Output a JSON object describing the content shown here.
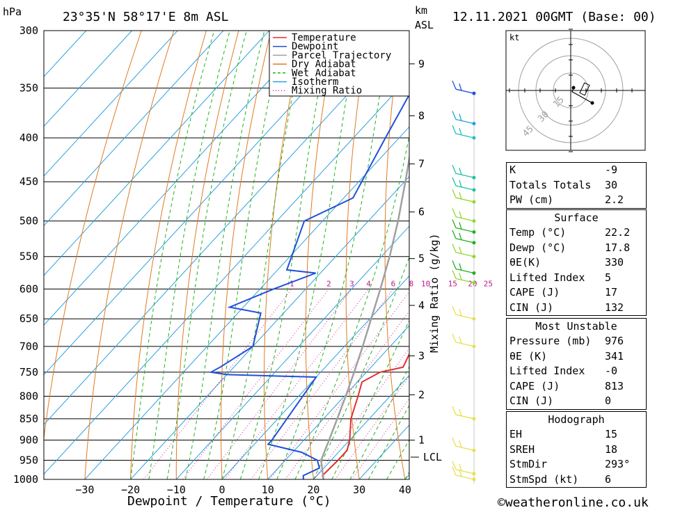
{
  "header": {
    "location": "23°35'N 58°17'E 8m ASL",
    "datetime": "12.11.2021 00GMT (Base: 00)",
    "hpa_label": "hPa",
    "km_label": "km",
    "asl_label": "ASL"
  },
  "axes": {
    "xlabel": "Dewpoint / Temperature (°C)",
    "mixing_label": "Mixing Ratio (g/kg)",
    "lcl_label": "LCL"
  },
  "legend": [
    {
      "label": "Temperature",
      "color": "#e03030",
      "style": "solid"
    },
    {
      "label": "Dewpoint",
      "color": "#2050d8",
      "style": "solid"
    },
    {
      "label": "Parcel Trajectory",
      "color": "#a0a0a0",
      "style": "solid"
    },
    {
      "label": "Dry Adiabat",
      "color": "#e07a20",
      "style": "solid"
    },
    {
      "label": "Wet Adiabat",
      "color": "#20b020",
      "style": "dashed"
    },
    {
      "label": "Isotherm",
      "color": "#2ca0e0",
      "style": "solid"
    },
    {
      "label": "Mixing Ratio",
      "color": "#d0209a",
      "style": "dotted"
    }
  ],
  "chart_data": {
    "type": "line",
    "title": "23°35'N 58°17'E 8m ASL",
    "xlabel": "Dewpoint / Temperature (°C)",
    "ylabel": "hPa",
    "xlim": [
      -40,
      40
    ],
    "ylim": [
      1000,
      300
    ],
    "y_scale": "log",
    "grid": true,
    "legend_position": "top-right",
    "pressure_ticks": [
      300,
      350,
      400,
      450,
      500,
      550,
      600,
      650,
      700,
      750,
      800,
      850,
      900,
      950,
      1000
    ],
    "temp_ticks": [
      -30,
      -20,
      -10,
      0,
      10,
      20,
      30,
      40
    ],
    "km_ticks": [
      {
        "label": "1",
        "p": 900
      },
      {
        "label": "2",
        "p": 797
      },
      {
        "label": "3",
        "p": 718
      },
      {
        "label": "4",
        "p": 627
      },
      {
        "label": "5",
        "p": 553
      },
      {
        "label": "6",
        "p": 488
      },
      {
        "label": "7",
        "p": 429
      },
      {
        "label": "8",
        "p": 377
      },
      {
        "label": "9",
        "p": 328
      }
    ],
    "lcl_pressure": 950,
    "mixing_ratio_labels": [
      1,
      2,
      3,
      4,
      6,
      8,
      10,
      15,
      20,
      25
    ],
    "series": [
      {
        "name": "Temperature",
        "points": [
          [
            1000,
            22.2
          ],
          [
            990,
            21.2
          ],
          [
            950,
            21.5
          ],
          [
            925,
            21.5
          ],
          [
            900,
            20.0
          ],
          [
            850,
            16.0
          ],
          [
            800,
            13.0
          ],
          [
            770,
            11.0
          ],
          [
            750,
            13.0
          ],
          [
            740,
            17.0
          ],
          [
            700,
            15.0
          ],
          [
            650,
            12.5
          ],
          [
            640,
            12.5
          ],
          [
            600,
            11.0
          ],
          [
            580,
            10.5
          ],
          [
            575,
            10.0
          ],
          [
            550,
            6.0
          ],
          [
            500,
            2.0
          ],
          [
            470,
            -1.0
          ],
          [
            450,
            -3.0
          ],
          [
            400,
            -9.0
          ],
          [
            350,
            -18.0
          ],
          [
            330,
            -22.0
          ],
          [
            300,
            -26.0
          ]
        ]
      },
      {
        "name": "Dewpoint",
        "points": [
          [
            1000,
            17.8
          ],
          [
            990,
            17.0
          ],
          [
            970,
            19.0
          ],
          [
            950,
            17.0
          ],
          [
            930,
            12.0
          ],
          [
            910,
            3.0
          ],
          [
            900,
            3.0
          ],
          [
            850,
            2.0
          ],
          [
            760,
            0.0
          ],
          [
            755,
            -20.0
          ],
          [
            750,
            -24.0
          ],
          [
            740,
            -23.0
          ],
          [
            700,
            -20.0
          ],
          [
            640,
            -25.0
          ],
          [
            630,
            -33.0
          ],
          [
            600,
            -27.0
          ],
          [
            575,
            -21.0
          ],
          [
            570,
            -28.0
          ],
          [
            500,
            -34.0
          ],
          [
            470,
            -28.0
          ],
          [
            400,
            -33.0
          ],
          [
            350,
            -37.0
          ],
          [
            330,
            -38.0
          ],
          [
            300,
            -29.0
          ]
        ]
      },
      {
        "name": "Parcel Trajectory",
        "points": [
          [
            1000,
            22.2
          ],
          [
            950,
            17.8
          ],
          [
            900,
            15.5
          ],
          [
            850,
            13.0
          ],
          [
            800,
            10.3
          ],
          [
            750,
            7.3
          ],
          [
            700,
            4.0
          ],
          [
            650,
            0.3
          ],
          [
            600,
            -3.7
          ],
          [
            550,
            -8.2
          ],
          [
            500,
            -13.5
          ],
          [
            450,
            -19.8
          ],
          [
            400,
            -27.0
          ],
          [
            350,
            -35.5
          ],
          [
            300,
            -44.0
          ]
        ]
      }
    ],
    "wind_barbs": [
      {
        "p": 1000,
        "colour": "#e8e050"
      },
      {
        "p": 985,
        "colour": "#e8e050"
      },
      {
        "p": 925,
        "colour": "#e8e050"
      },
      {
        "p": 850,
        "colour": "#e8e050"
      },
      {
        "p": 700,
        "colour": "#e8e050"
      },
      {
        "p": 650,
        "colour": "#e8e050"
      },
      {
        "p": 590,
        "colour": "#90d830"
      },
      {
        "p": 575,
        "colour": "#20b020"
      },
      {
        "p": 550,
        "colour": "#90d830"
      },
      {
        "p": 530,
        "colour": "#20b020"
      },
      {
        "p": 515,
        "colour": "#20b020"
      },
      {
        "p": 500,
        "colour": "#90d830"
      },
      {
        "p": 475,
        "colour": "#90d830"
      },
      {
        "p": 460,
        "colour": "#20c0a0"
      },
      {
        "p": 445,
        "colour": "#20c0a0"
      },
      {
        "p": 400,
        "colour": "#20c0c0"
      },
      {
        "p": 385,
        "colour": "#20a0e0"
      },
      {
        "p": 355,
        "colour": "#2050d8"
      }
    ]
  },
  "hodograph": {
    "unit": "kt",
    "ring_labels": [
      "15",
      "30",
      "45"
    ]
  },
  "stats": {
    "indices": [
      {
        "label": "K",
        "value": "-9"
      },
      {
        "label": "Totals Totals",
        "value": "30"
      },
      {
        "label": "PW (cm)",
        "value": "2.2"
      }
    ],
    "surface_title": "Surface",
    "surface": [
      {
        "label": "Temp (°C)",
        "value": "22.2"
      },
      {
        "label": "Dewp (°C)",
        "value": "17.8"
      },
      {
        "label": "θE(K)",
        "value": "330"
      },
      {
        "label": "Lifted Index",
        "value": "5"
      },
      {
        "label": "CAPE (J)",
        "value": "17"
      },
      {
        "label": "CIN (J)",
        "value": "132"
      }
    ],
    "mu_title": "Most Unstable",
    "mu": [
      {
        "label": "Pressure (mb)",
        "value": "976"
      },
      {
        "label": "θE (K)",
        "value": "341"
      },
      {
        "label": "Lifted Index",
        "value": "-0"
      },
      {
        "label": "CAPE (J)",
        "value": "813"
      },
      {
        "label": "CIN (J)",
        "value": "0"
      }
    ],
    "hodo_title": "Hodograph",
    "hodo": [
      {
        "label": "EH",
        "value": "15"
      },
      {
        "label": "SREH",
        "value": "18"
      },
      {
        "label": "StmDir",
        "value": "293°"
      },
      {
        "label": "StmSpd (kt)",
        "value": "6"
      }
    ]
  },
  "footer": {
    "copyright": "©weatheronline.co.uk"
  }
}
